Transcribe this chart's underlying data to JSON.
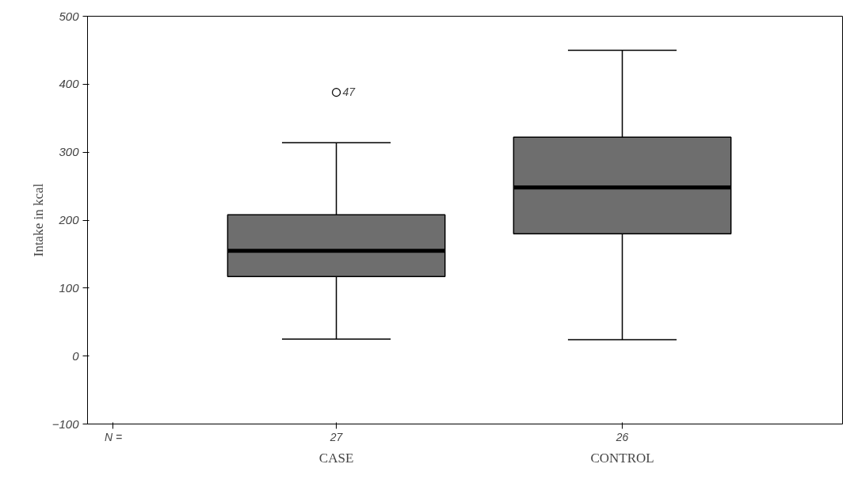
{
  "chart_data": {
    "type": "box",
    "ylabel": "Intake in kcal",
    "categories": [
      "CASE",
      "CONTROL"
    ],
    "boxes": [
      {
        "low": 25,
        "q1": 117,
        "median": 155,
        "q3": 208,
        "high": 314,
        "outliers": [
          388
        ]
      },
      {
        "low": 24,
        "q1": 180,
        "median": 248,
        "q3": 322,
        "high": 450
      }
    ],
    "color": "#6e6e6e",
    "ylim": [
      -100,
      500
    ],
    "yticks": [
      -100,
      0,
      100,
      200,
      300,
      400,
      500
    ],
    "grid": false,
    "annotations": [
      "47",
      "N =",
      "27",
      "26"
    ]
  }
}
